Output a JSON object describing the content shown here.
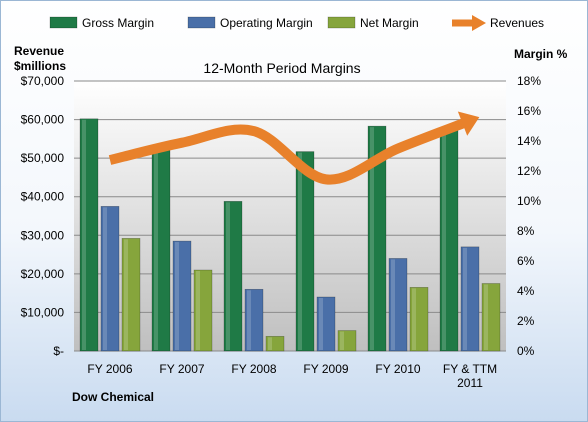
{
  "chart_data": {
    "type": "bar",
    "title": "12-Month Period Margins",
    "left_axis_title": [
      "Revenue",
      "$millions"
    ],
    "right_axis_title": "Margin %",
    "company": "Dow Chemical",
    "categories": [
      [
        "FY 2006"
      ],
      [
        "FY 2007"
      ],
      [
        "FY 2008"
      ],
      [
        "FY 2009"
      ],
      [
        "FY 2010"
      ],
      [
        "FY & TTM",
        "2011"
      ]
    ],
    "left_axis": {
      "min": 0,
      "max": 70000,
      "step": 10000,
      "tick_labels": [
        "$-",
        "$10,000",
        "$20,000",
        "$30,000",
        "$40,000",
        "$50,000",
        "$60,000",
        "$70,000"
      ]
    },
    "right_axis": {
      "min": 0,
      "max": 18,
      "step": 2,
      "tick_labels": [
        "0%",
        "2%",
        "4%",
        "6%",
        "8%",
        "10%",
        "12%",
        "14%",
        "16%",
        "18%"
      ]
    },
    "grid": true,
    "legend_position": "top",
    "series": [
      {
        "name": "Gross Margin",
        "kind": "bar",
        "axis": "left",
        "color": "#1f7a46",
        "values": [
          60200,
          52000,
          38800,
          51700,
          58300,
          57200
        ]
      },
      {
        "name": "Operating Margin",
        "kind": "bar",
        "axis": "left",
        "color": "#4a6fa8",
        "values": [
          37500,
          28500,
          16000,
          14000,
          24000,
          27000
        ]
      },
      {
        "name": "Net Margin",
        "kind": "bar",
        "axis": "left",
        "color": "#86a53c",
        "values": [
          29200,
          21000,
          3800,
          5300,
          16500,
          17500
        ]
      },
      {
        "name": "Revenues",
        "kind": "line",
        "axis": "left",
        "color": "#e8812b",
        "values": [
          49500,
          54000,
          57000,
          44500,
          52500,
          59700
        ]
      }
    ]
  }
}
